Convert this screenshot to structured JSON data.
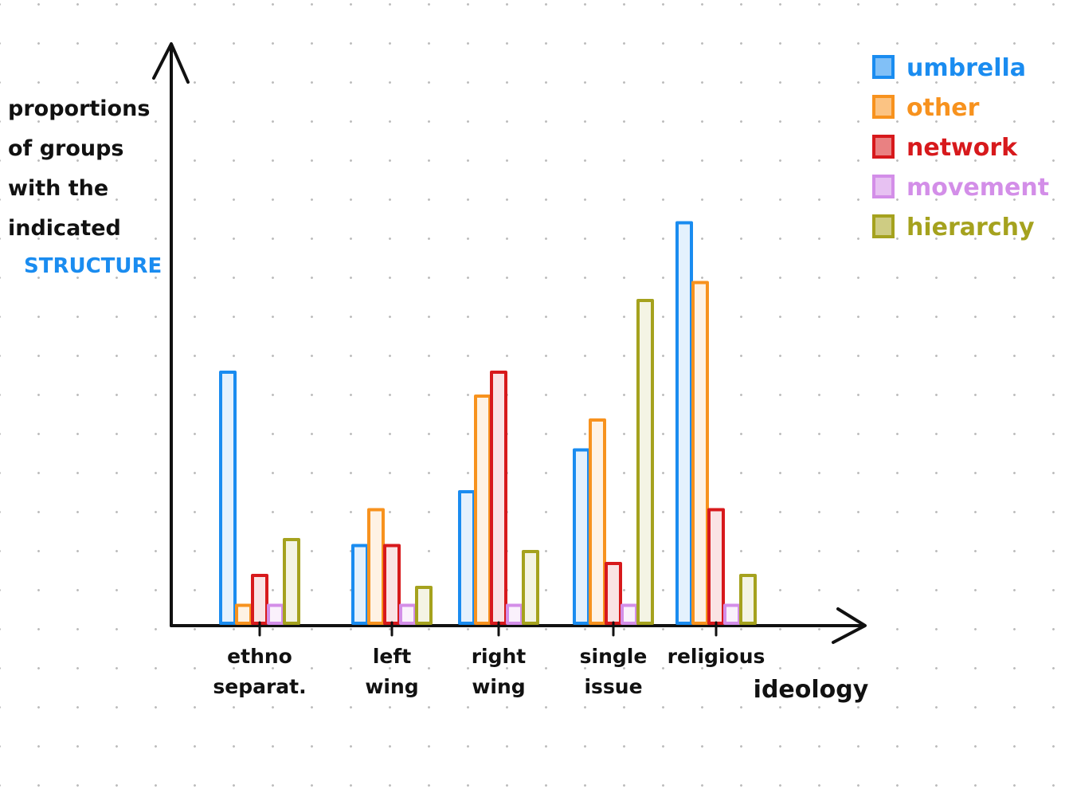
{
  "chart_data": {
    "type": "bar",
    "ylabel_lines": [
      "proportions",
      "of groups",
      "with the",
      "indicated"
    ],
    "ylabel_highlight": "STRUCTURE",
    "xlabel": "ideology",
    "categories": [
      [
        "ethno",
        "separat."
      ],
      [
        "left",
        "wing"
      ],
      [
        "right",
        "wing"
      ],
      [
        "single",
        "issue"
      ],
      [
        "religious"
      ]
    ],
    "series": [
      {
        "name": "umbrella",
        "color": "#1a8cf0",
        "values": [
          0.42,
          0.13,
          0.22,
          0.29,
          0.67
        ]
      },
      {
        "name": "other",
        "color": "#f7921e",
        "values": [
          0.03,
          0.19,
          0.38,
          0.34,
          0.57
        ]
      },
      {
        "name": "network",
        "color": "#d7191c",
        "values": [
          0.08,
          0.13,
          0.42,
          0.1,
          0.19
        ]
      },
      {
        "name": "movement",
        "color": "#d38ee8",
        "values": [
          0.03,
          0.03,
          0.03,
          0.03,
          0.03
        ]
      },
      {
        "name": "hierarchy",
        "color": "#a5a21e",
        "values": [
          0.14,
          0.06,
          0.12,
          0.54,
          0.08
        ]
      }
    ],
    "ylim": [
      0,
      1
    ],
    "grid": false,
    "legend_position": "top-right"
  }
}
